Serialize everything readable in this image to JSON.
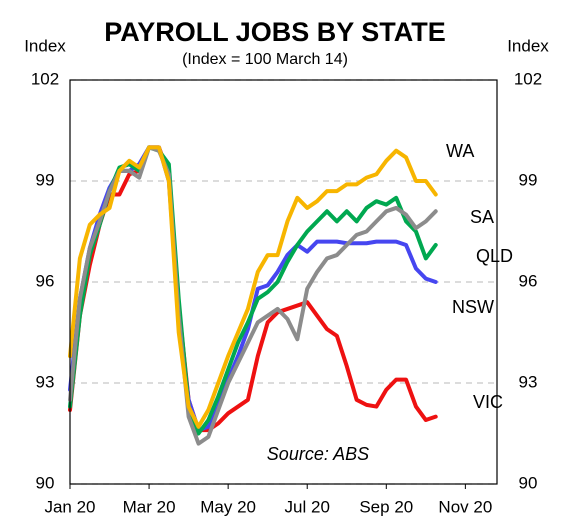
{
  "chart_data": {
    "type": "line",
    "title": "PAYROLL JOBS BY STATE",
    "subtitle": "(Index = 100 March 14)",
    "y_axis_label": "Index",
    "y2_axis_label": "Index",
    "annotation": "Source: ABS",
    "x": [
      0,
      0.25,
      0.5,
      0.75,
      1,
      1.25,
      1.5,
      1.75,
      2,
      2.25,
      2.5,
      2.75,
      3,
      3.25,
      3.5,
      3.75,
      4,
      4.25,
      4.5,
      4.75,
      5,
      5.25,
      5.5,
      5.75,
      6,
      6.25,
      6.5,
      6.75,
      7,
      7.25,
      7.5,
      7.75,
      8,
      8.25,
      8.5,
      8.75,
      9,
      9.25
    ],
    "xlim": [
      0,
      10.8
    ],
    "xticks": [
      {
        "value": 0,
        "label": "Jan 20"
      },
      {
        "value": 2,
        "label": "Mar 20"
      },
      {
        "value": 4,
        "label": "May 20"
      },
      {
        "value": 6,
        "label": "Jul 20"
      },
      {
        "value": 8,
        "label": "Sep 20"
      },
      {
        "value": 10,
        "label": "Nov 20"
      }
    ],
    "ylim": [
      90,
      102
    ],
    "yticks": [
      90,
      93,
      96,
      99,
      102
    ],
    "y2lim": [
      90,
      102
    ],
    "y2ticks": [
      90,
      93,
      96,
      99,
      102
    ],
    "grid": true,
    "series": [
      {
        "name": "WA",
        "color": "#f7b500",
        "values": [
          93.8,
          96.7,
          97.7,
          98,
          98.2,
          99.3,
          99.6,
          99.4,
          100,
          100,
          99,
          94.5,
          92.3,
          91.7,
          92.2,
          93,
          93.8,
          94.5,
          95.2,
          96.3,
          96.8,
          96.8,
          97.8,
          98.5,
          98.2,
          98.4,
          98.7,
          98.7,
          98.9,
          98.9,
          99.1,
          99.2,
          99.6,
          99.9,
          99.7,
          99.0,
          99.0,
          98.6
        ]
      },
      {
        "name": "SA",
        "color": "#8c8c8c",
        "values": [
          92.5,
          95.5,
          97,
          97.8,
          98.7,
          99.3,
          99.3,
          99.1,
          100,
          99.9,
          99.2,
          95,
          92,
          91.2,
          91.4,
          92.2,
          93,
          93.6,
          94.2,
          94.8,
          95,
          95.2,
          94.9,
          94.3,
          95.8,
          96.3,
          96.7,
          96.8,
          97.1,
          97.4,
          97.5,
          97.8,
          98.1,
          98.2,
          98,
          97.6,
          97.8,
          98.1
        ]
      },
      {
        "name": "QLD",
        "color": "#00a850",
        "values": [
          92.3,
          95,
          96.8,
          97.7,
          98.7,
          99.4,
          99.5,
          99.3,
          100,
          99.9,
          99.5,
          95.5,
          92.3,
          91.5,
          91.9,
          92.6,
          93.4,
          94.2,
          94.8,
          95.5,
          95.7,
          96,
          96.6,
          97.1,
          97.5,
          97.8,
          98.1,
          97.8,
          98.1,
          97.8,
          98.2,
          98.4,
          98.3,
          98.5,
          97.8,
          97.5,
          96.7,
          97.1
        ]
      },
      {
        "name": "NSW",
        "color": "#4646f0",
        "values": [
          92.8,
          95.5,
          97,
          98,
          98.8,
          99.3,
          99.3,
          99.5,
          100,
          100,
          99,
          95,
          92.5,
          91.6,
          91.7,
          92.3,
          93.1,
          93.8,
          94.6,
          95.8,
          95.9,
          96.3,
          96.8,
          97.1,
          96.9,
          97.2,
          97.2,
          97.2,
          97.15,
          97.15,
          97.15,
          97.2,
          97.2,
          97.2,
          97.1,
          96.4,
          96.1,
          96.0
        ]
      },
      {
        "name": "VIC",
        "color": "#ee1111",
        "values": [
          92.2,
          95,
          96.5,
          97.7,
          98.6,
          98.6,
          99.2,
          99.3,
          100,
          100,
          99.2,
          95.3,
          92.5,
          91.6,
          91.6,
          91.8,
          92.1,
          92.3,
          92.5,
          93.8,
          94.8,
          95.1,
          95.2,
          95.3,
          95.4,
          95,
          94.6,
          94.4,
          93.5,
          92.5,
          92.35,
          92.3,
          92.8,
          93.1,
          93.1,
          92.3,
          91.9,
          92.0
        ]
      }
    ]
  }
}
